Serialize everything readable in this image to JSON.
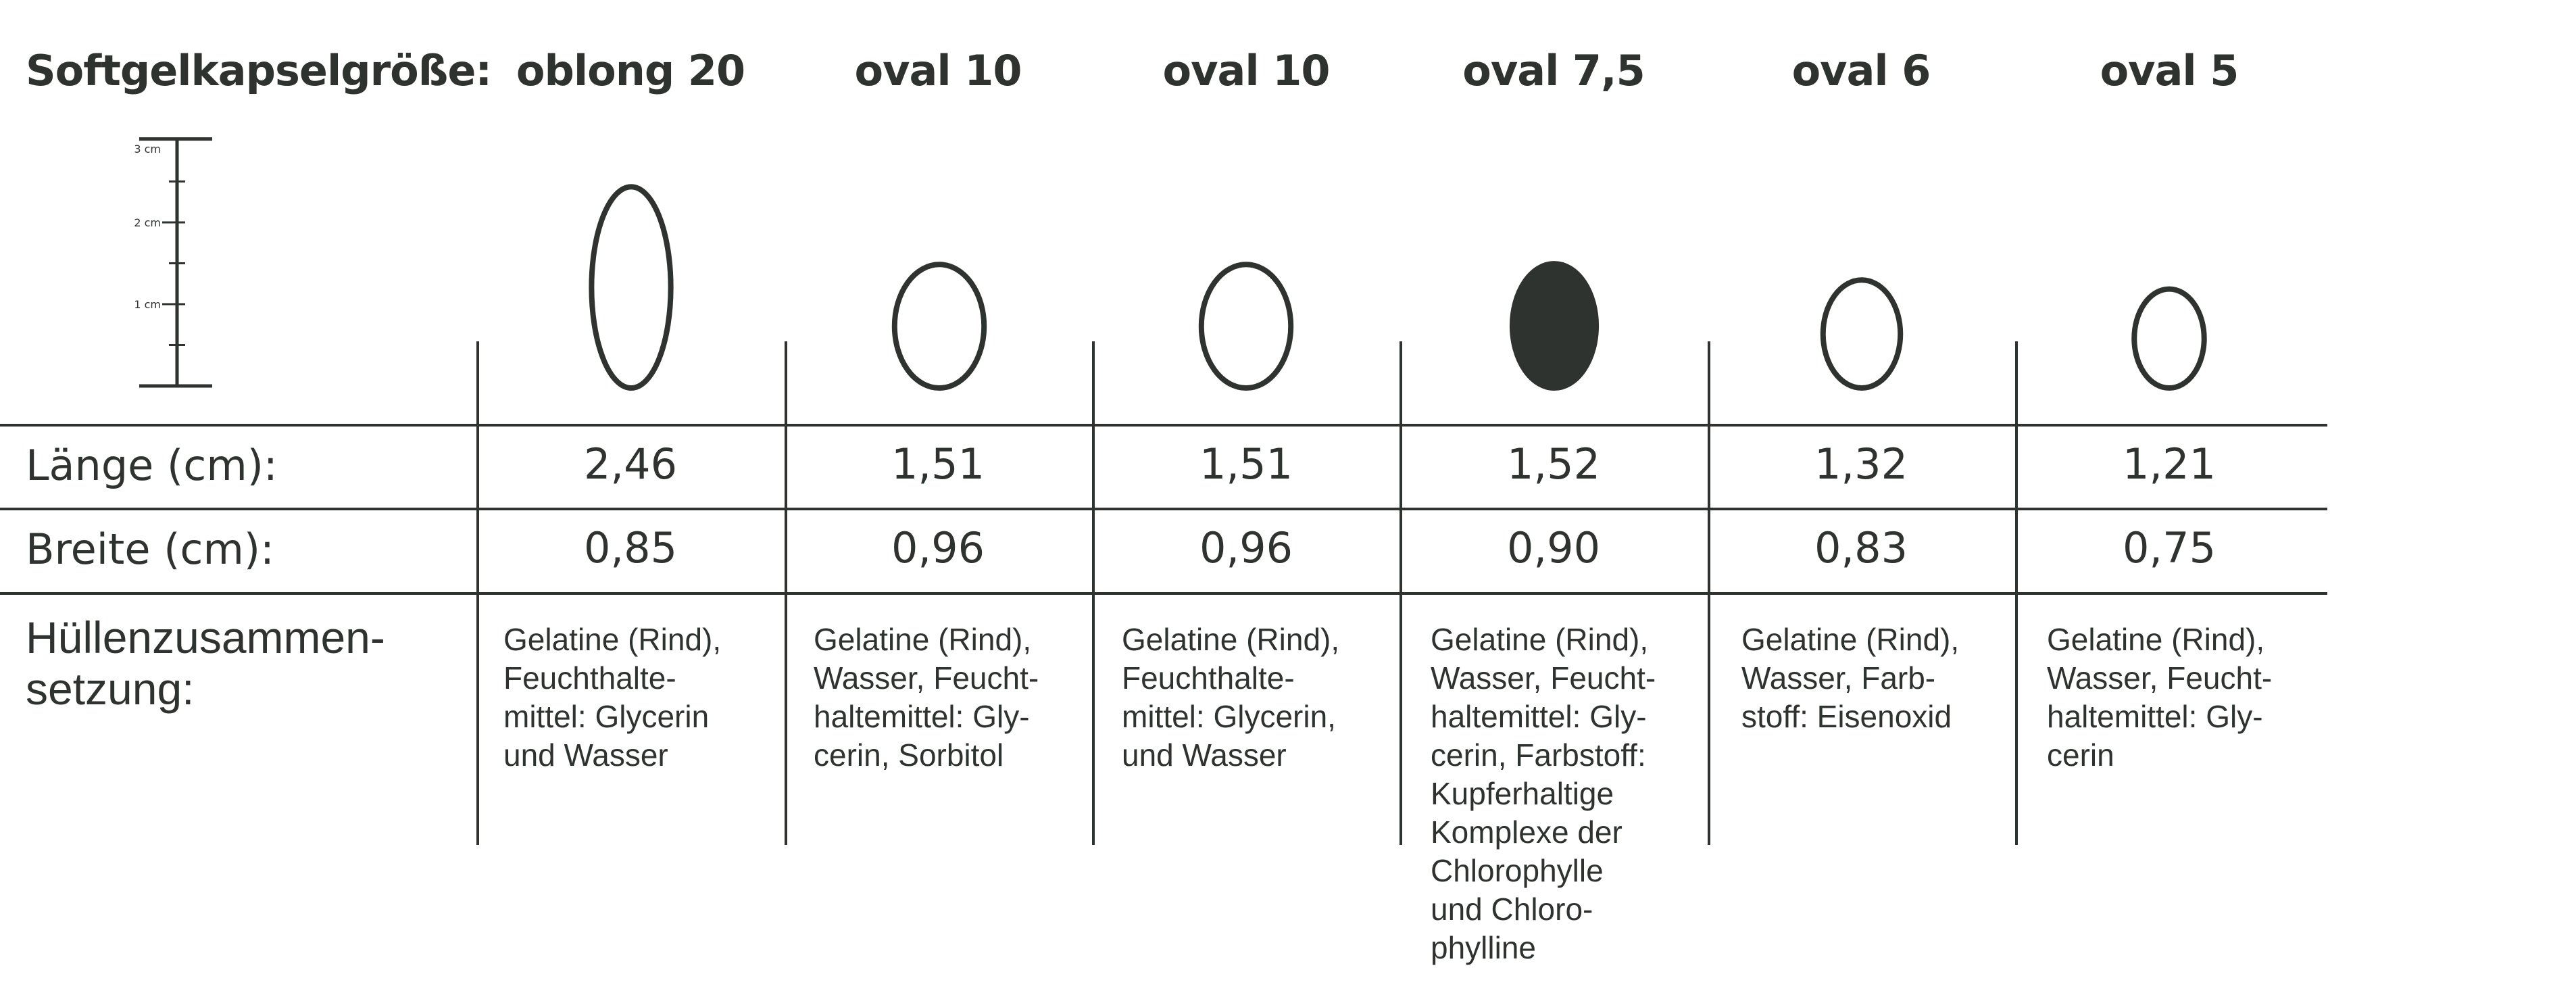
{
  "title": "Softgelkapselgröße:",
  "scale": {
    "unit": "cm",
    "ticks": [
      "3 cm",
      "2 cm",
      "1 cm"
    ]
  },
  "columns": [
    {
      "name": "oblong 20",
      "length": "2,46",
      "width": "0,85",
      "length_cm": 2.46,
      "width_cm": 0.85,
      "filled": false,
      "composition": "Gelatine (Rind),\nFeuchthalte-\nmittel: Glycerin\nund Wasser"
    },
    {
      "name": "oval 10",
      "length": "1,51",
      "width": "0,96",
      "length_cm": 1.51,
      "width_cm": 0.96,
      "filled": false,
      "composition": "Gelatine (Rind),\nWasser, Feucht-\nhaltemittel: Gly-\ncerin, Sorbitol"
    },
    {
      "name": "oval 10",
      "length": "1,51",
      "width": "0,96",
      "length_cm": 1.51,
      "width_cm": 0.96,
      "filled": false,
      "composition": "Gelatine (Rind),\nFeuchthalte-\nmittel: Glycerin,\nund Wasser"
    },
    {
      "name": "oval 7,5",
      "length": "1,52",
      "width": "0,90",
      "length_cm": 1.52,
      "width_cm": 0.9,
      "filled": true,
      "composition": "Gelatine (Rind),\nWasser, Feucht-\nhaltemittel: Gly-\ncerin, Farbstoff:\nKupferhaltige\nKomplexe der\nChlorophylle\nund Chloro-\nphylline"
    },
    {
      "name": "oval 6",
      "length": "1,32",
      "width": "0,83",
      "length_cm": 1.32,
      "width_cm": 0.83,
      "filled": false,
      "composition": "Gelatine (Rind),\nWasser, Farb-\nstoff: Eisenoxid"
    },
    {
      "name": "oval 5",
      "length": "1,21",
      "width": "0,75",
      "length_cm": 1.21,
      "width_cm": 0.75,
      "filled": false,
      "composition": "Gelatine (Rind),\nWasser, Feucht-\nhaltemittel: Gly-\ncerin"
    }
  ],
  "rows": {
    "length_label": "Länge (cm):",
    "width_label": "Breite (cm):",
    "composition_label": "Hüllenzusammen-\nsetzung:"
  },
  "colors": {
    "ink": "#2f332f",
    "capsule_fill": "#2f332f",
    "background": "#ffffff"
  }
}
